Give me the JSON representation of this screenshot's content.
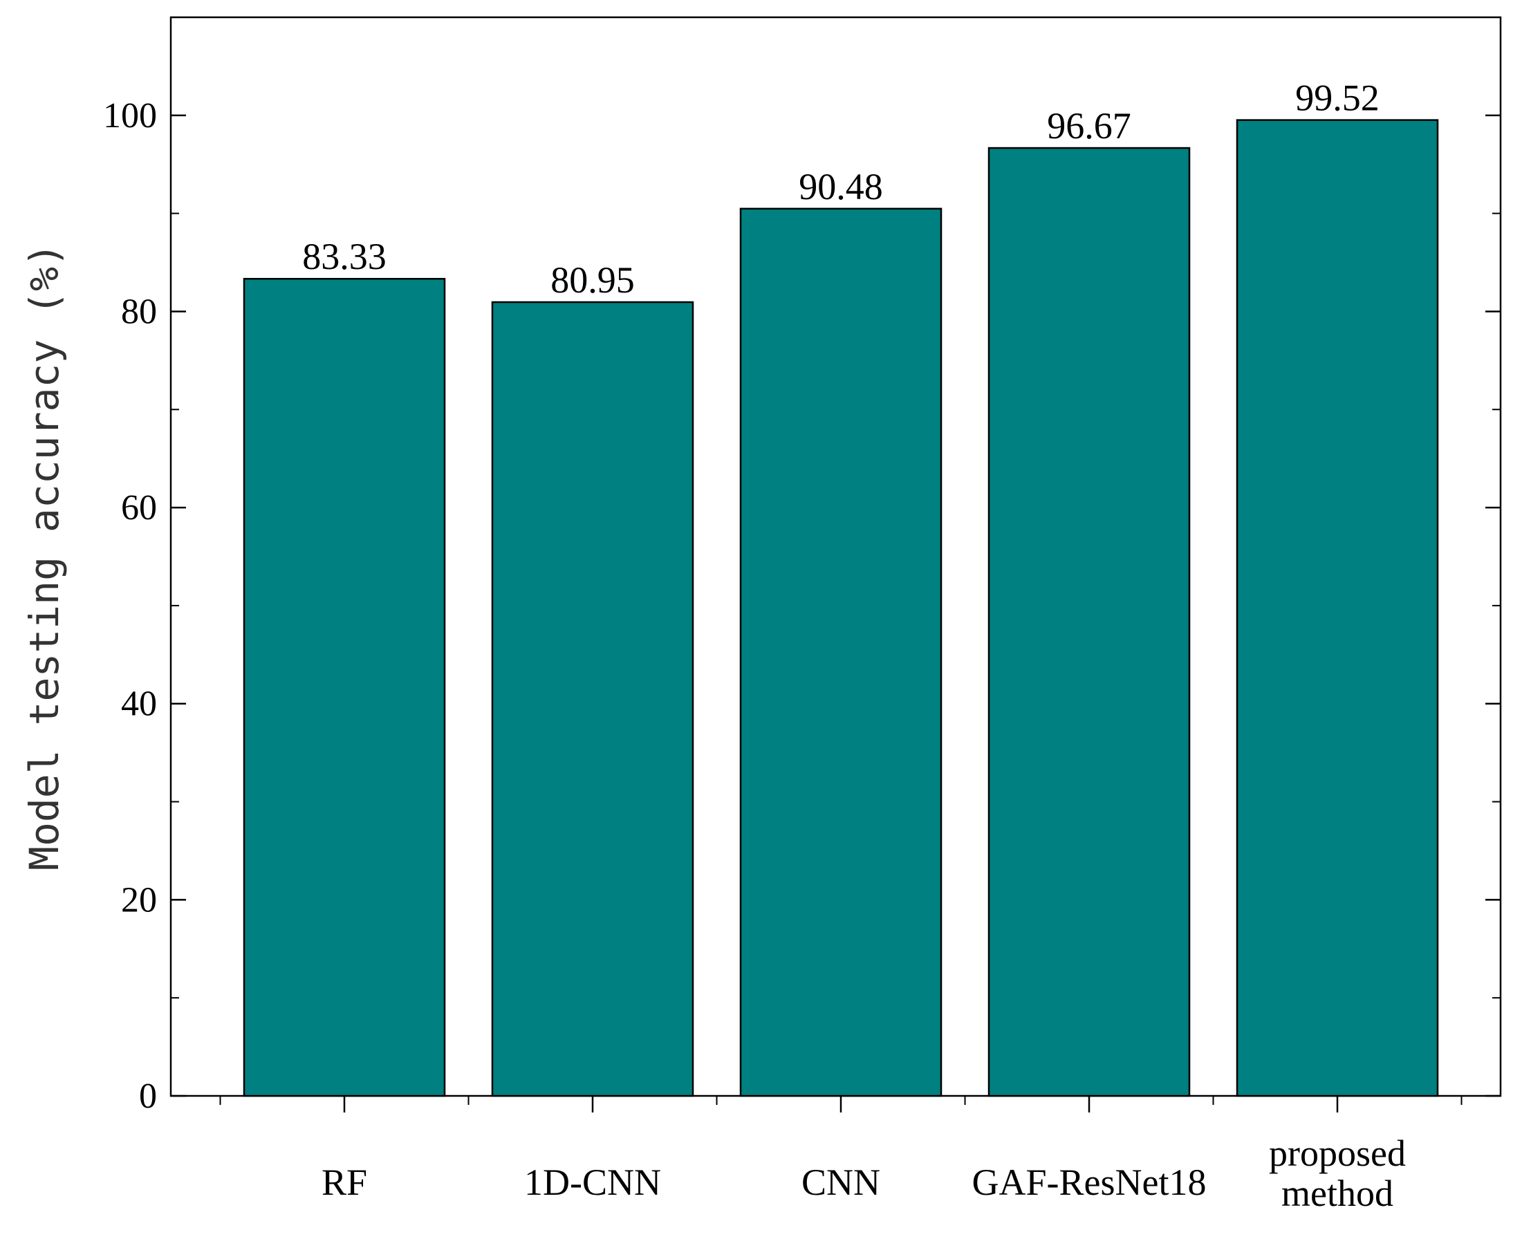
{
  "chart_data": {
    "type": "bar",
    "categories": [
      [
        "RF"
      ],
      [
        "1D-CNN"
      ],
      [
        "CNN"
      ],
      [
        "GAF-ResNet18"
      ],
      [
        "proposed",
        "method"
      ]
    ],
    "values": [
      83.33,
      80.95,
      90.48,
      96.67,
      99.52
    ],
    "value_labels": [
      "83.33",
      "80.95",
      "90.48",
      "96.67",
      "99.52"
    ],
    "ylabel": "Model testing accuracy (%)",
    "xlabel": "",
    "ylim": [
      0,
      110
    ],
    "yticks": [
      0,
      20,
      40,
      60,
      80,
      100
    ],
    "ytick_labels": [
      "0",
      "20",
      "40",
      "60",
      "80",
      "100"
    ],
    "y_minor_step": 10,
    "bar_color": "#008080",
    "grid": false,
    "legend": "none"
  }
}
